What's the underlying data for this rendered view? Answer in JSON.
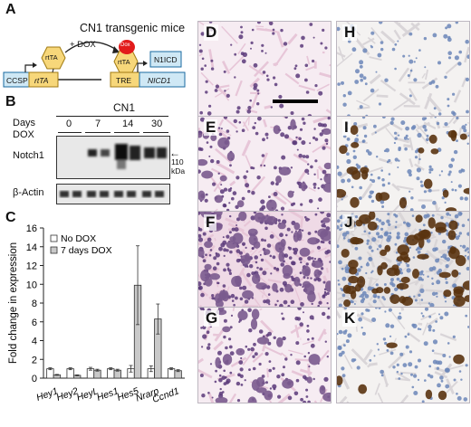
{
  "panel_a": {
    "letter": "A",
    "title": "CN1 transgenic mice",
    "dox_label": "+ DOX",
    "dox_bubble": "Dox",
    "promoter1": "CCSP",
    "gene1": "rtTA",
    "protein1": "rtTA",
    "protein2": "rtTA",
    "promoter2": "TRE",
    "gene2": "NICD1",
    "product": "N1ICD"
  },
  "panel_b": {
    "letter": "B",
    "group_label": "CN1",
    "days_label": "Days",
    "dox_label": "DOX",
    "days": [
      "0",
      "7",
      "14",
      "30"
    ],
    "row1_label": "Notch1",
    "row2_label": "β-Actin",
    "marker_arrow": "←",
    "marker_value": "110",
    "marker_unit": "kDa"
  },
  "panel_c": {
    "letter": "C"
  },
  "panels_micro": [
    {
      "letter": "D",
      "stain": "he",
      "density": "low"
    },
    {
      "letter": "E",
      "stain": "he",
      "density": "mid"
    },
    {
      "letter": "F",
      "stain": "he",
      "density": "high"
    },
    {
      "letter": "G",
      "stain": "he",
      "density": "mid"
    },
    {
      "letter": "H",
      "stain": "ihc",
      "density": "low"
    },
    {
      "letter": "I",
      "stain": "ihc",
      "density": "mid"
    },
    {
      "letter": "J",
      "stain": "ihc",
      "density": "high"
    },
    {
      "letter": "K",
      "stain": "ihc",
      "density": "lowmid"
    }
  ],
  "colors": {
    "he_pink": "#e7c6d8",
    "he_nuclei": "#5b3a7a",
    "ihc_brown": "#5a3310",
    "ihc_blue": "#6b86b8",
    "bar_no_dox": "#ffffff",
    "bar_dox": "#c9c9c9"
  },
  "chart_data": {
    "type": "bar",
    "categories": [
      "Hey1",
      "Hey2",
      "HeyL",
      "Hes1",
      "Hes5",
      "Nrarp",
      "Ccnd1"
    ],
    "series": [
      {
        "name": "No DOX",
        "values": [
          1.0,
          1.0,
          1.0,
          1.0,
          1.0,
          1.0,
          1.0
        ],
        "errors": [
          0.1,
          0.1,
          0.15,
          0.1,
          0.35,
          0.3,
          0.1
        ]
      },
      {
        "name": "7 days DOX",
        "values": [
          0.35,
          0.3,
          0.85,
          0.85,
          9.9,
          6.3,
          0.8
        ],
        "errors": [
          0.05,
          0.05,
          0.1,
          0.1,
          4.2,
          1.6,
          0.1
        ]
      }
    ],
    "ylabel": "Fold change in expression",
    "ylim": [
      0,
      16
    ],
    "yticks": [
      0,
      2,
      4,
      6,
      8,
      10,
      12,
      14,
      16
    ],
    "legend_position": "top-left"
  }
}
